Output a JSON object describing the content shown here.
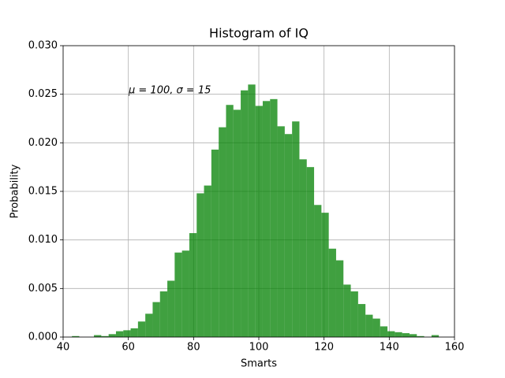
{
  "chart_data": {
    "type": "histogram",
    "title": "Histogram of IQ",
    "xlabel": "Smarts",
    "ylabel": "Probability",
    "annotation": "μ = 100,  σ = 15",
    "bins": [
      42.7,
      44.95,
      47.2,
      49.45,
      51.7,
      53.95,
      56.2,
      58.45,
      60.7,
      62.95,
      65.2,
      67.45,
      69.7,
      71.95,
      74.2,
      76.45,
      78.7,
      80.95,
      83.2,
      85.45,
      87.7,
      89.95,
      92.2,
      94.45,
      96.7,
      98.95,
      101.2,
      103.45,
      105.7,
      107.95,
      110.2,
      112.45,
      114.7,
      116.95,
      119.2,
      121.45,
      123.7,
      125.95,
      128.2,
      130.45,
      132.7,
      134.95,
      137.2,
      139.45,
      141.7,
      143.95,
      146.2,
      148.45,
      150.7,
      152.95,
      155.2
    ],
    "values": [
      0.0001,
      0,
      0,
      0.0002,
      0.0001,
      0.0003,
      0.0006,
      0.0007,
      0.0009,
      0.0016,
      0.0024,
      0.0036,
      0.0047,
      0.0058,
      0.0087,
      0.0089,
      0.0107,
      0.0148,
      0.0156,
      0.0193,
      0.0216,
      0.0239,
      0.0234,
      0.0254,
      0.026,
      0.0238,
      0.0243,
      0.0245,
      0.0217,
      0.0209,
      0.0222,
      0.0183,
      0.0175,
      0.0136,
      0.0128,
      0.0091,
      0.0079,
      0.0054,
      0.0047,
      0.0034,
      0.0023,
      0.0019,
      0.0011,
      0.0006,
      0.0005,
      0.0004,
      0.0003,
      0.0001,
      0,
      0.0002
    ],
    "color": "#008000",
    "opacity": 0.75,
    "xlim": [
      40,
      160
    ],
    "xticks": [
      40,
      60,
      80,
      100,
      120,
      140,
      160
    ],
    "ylim": [
      0,
      0.03
    ],
    "yticks": [
      {
        "value": 0,
        "label": "0.000"
      },
      {
        "value": 0.005,
        "label": "0.005"
      },
      {
        "value": 0.01,
        "label": "0.010"
      },
      {
        "value": 0.015,
        "label": "0.015"
      },
      {
        "value": 0.02,
        "label": "0.020"
      },
      {
        "value": 0.025,
        "label": "0.025"
      },
      {
        "value": 0.03,
        "label": "0.030"
      }
    ],
    "grid": true
  }
}
